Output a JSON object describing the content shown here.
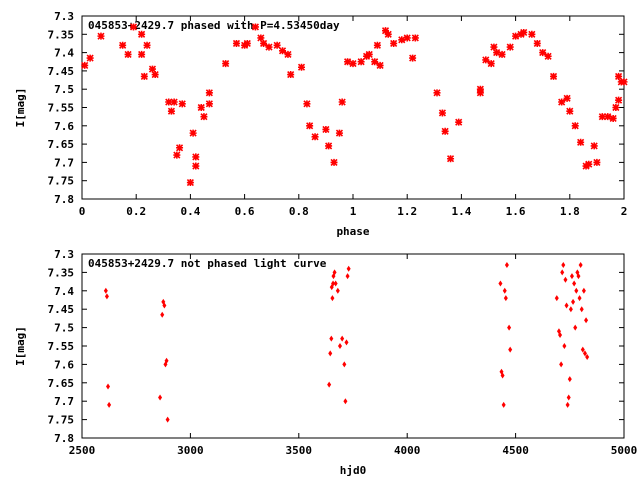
{
  "marker_color": "#ff0000",
  "chart_data": [
    {
      "type": "scatter",
      "title": "045853+2429.7 phased with P=4.53450day",
      "xlabel": "phase",
      "ylabel": "I[mag]",
      "xlim": [
        0,
        2
      ],
      "ylim": [
        7.3,
        7.8
      ],
      "y_inverted": true,
      "marker": "star",
      "grid": false,
      "xticks": [
        "0",
        "0.2",
        "0.4",
        "0.6",
        "0.8",
        "1",
        "1.2",
        "1.4",
        "1.6",
        "1.8",
        "2"
      ],
      "yticks": [
        "7.3",
        "7.35",
        "7.4",
        "7.45",
        "7.5",
        "7.55",
        "7.6",
        "7.65",
        "7.7",
        "7.75",
        "7.8"
      ],
      "x": [
        0.01,
        0.03,
        0.07,
        0.15,
        0.17,
        0.19,
        0.22,
        0.22,
        0.23,
        0.24,
        0.26,
        0.27,
        0.32,
        0.33,
        0.34,
        0.35,
        0.36,
        0.37,
        0.4,
        0.41,
        0.42,
        0.42,
        0.44,
        0.45,
        0.47,
        0.47,
        0.53,
        0.57,
        0.6,
        0.61,
        0.64,
        0.66,
        0.67,
        0.69,
        0.72,
        0.74,
        0.76,
        0.77,
        0.81,
        0.83,
        0.84,
        0.86,
        0.9,
        0.91,
        0.93,
        0.95,
        0.96,
        0.98,
        1.0,
        1.03,
        1.05,
        1.06,
        1.08,
        1.09,
        1.1,
        1.12,
        1.13,
        1.15,
        1.18,
        1.2,
        1.22,
        1.23,
        1.31,
        1.33,
        1.34,
        1.36,
        1.39,
        1.47,
        1.47,
        1.49,
        1.51,
        1.52,
        1.53,
        1.55,
        1.58,
        1.6,
        1.62,
        1.63,
        1.66,
        1.68,
        1.7,
        1.72,
        1.74,
        1.77,
        1.79,
        1.8,
        1.82,
        1.84,
        1.86,
        1.87,
        1.89,
        1.9,
        1.92,
        1.94,
        1.96,
        1.97,
        1.98,
        1.98,
        1.99,
        2.0
      ],
      "y": [
        7.435,
        7.415,
        7.355,
        7.38,
        7.405,
        7.33,
        7.405,
        7.35,
        7.465,
        7.38,
        7.445,
        7.46,
        7.535,
        7.56,
        7.535,
        7.68,
        7.66,
        7.54,
        7.755,
        7.62,
        7.71,
        7.685,
        7.55,
        7.575,
        7.54,
        7.51,
        7.43,
        7.375,
        7.38,
        7.375,
        7.33,
        7.36,
        7.375,
        7.385,
        7.38,
        7.395,
        7.405,
        7.46,
        7.44,
        7.54,
        7.6,
        7.63,
        7.61,
        7.655,
        7.7,
        7.62,
        7.535,
        7.425,
        7.43,
        7.425,
        7.41,
        7.405,
        7.425,
        7.38,
        7.435,
        7.34,
        7.35,
        7.375,
        7.365,
        7.36,
        7.415,
        7.36,
        7.51,
        7.565,
        7.615,
        7.69,
        7.59,
        7.5,
        7.51,
        7.42,
        7.43,
        7.385,
        7.4,
        7.405,
        7.385,
        7.355,
        7.35,
        7.345,
        7.35,
        7.375,
        7.4,
        7.41,
        7.465,
        7.535,
        7.525,
        7.56,
        7.6,
        7.645,
        7.71,
        7.705,
        7.655,
        7.7,
        7.575,
        7.575,
        7.58,
        7.55,
        7.53,
        7.465,
        7.48,
        7.48
      ]
    },
    {
      "type": "scatter",
      "title": "045853+2429.7 not phased light curve",
      "xlabel": "hjd0",
      "ylabel": "I[mag]",
      "xlim": [
        2500,
        5000
      ],
      "ylim": [
        7.3,
        7.8
      ],
      "y_inverted": true,
      "marker": "diamond",
      "grid": false,
      "xticks": [
        "2500",
        "3000",
        "3500",
        "4000",
        "4500",
        "5000"
      ],
      "yticks": [
        "7.3",
        "7.35",
        "7.4",
        "7.45",
        "7.5",
        "7.55",
        "7.6",
        "7.65",
        "7.7",
        "7.75",
        "7.8"
      ],
      "x": [
        2610,
        2615,
        2620,
        2625,
        2860,
        2870,
        2875,
        2880,
        2885,
        2890,
        2895,
        3640,
        3645,
        3650,
        3652,
        3655,
        3658,
        3660,
        3665,
        3670,
        3680,
        3690,
        3700,
        3710,
        3715,
        3720,
        3725,
        3730,
        4430,
        4435,
        4440,
        4445,
        4450,
        4455,
        4460,
        4470,
        4475,
        4690,
        4700,
        4705,
        4710,
        4715,
        4720,
        4725,
        4730,
        4735,
        4740,
        4745,
        4750,
        4755,
        4760,
        4765,
        4770,
        4775,
        4780,
        4785,
        4790,
        4795,
        4800,
        4805,
        4810,
        4815,
        4820,
        4825,
        4830
      ],
      "y": [
        7.4,
        7.415,
        7.66,
        7.71,
        7.69,
        7.465,
        7.43,
        7.44,
        7.6,
        7.59,
        7.75,
        7.655,
        7.57,
        7.53,
        7.39,
        7.42,
        7.38,
        7.36,
        7.35,
        7.38,
        7.4,
        7.55,
        7.53,
        7.6,
        7.7,
        7.54,
        7.36,
        7.34,
        7.38,
        7.62,
        7.63,
        7.71,
        7.4,
        7.42,
        7.33,
        7.5,
        7.56,
        7.42,
        7.51,
        7.52,
        7.6,
        7.35,
        7.33,
        7.55,
        7.37,
        7.44,
        7.71,
        7.69,
        7.64,
        7.45,
        7.36,
        7.43,
        7.38,
        7.5,
        7.4,
        7.35,
        7.36,
        7.42,
        7.33,
        7.45,
        7.56,
        7.4,
        7.57,
        7.48,
        7.58
      ]
    }
  ]
}
